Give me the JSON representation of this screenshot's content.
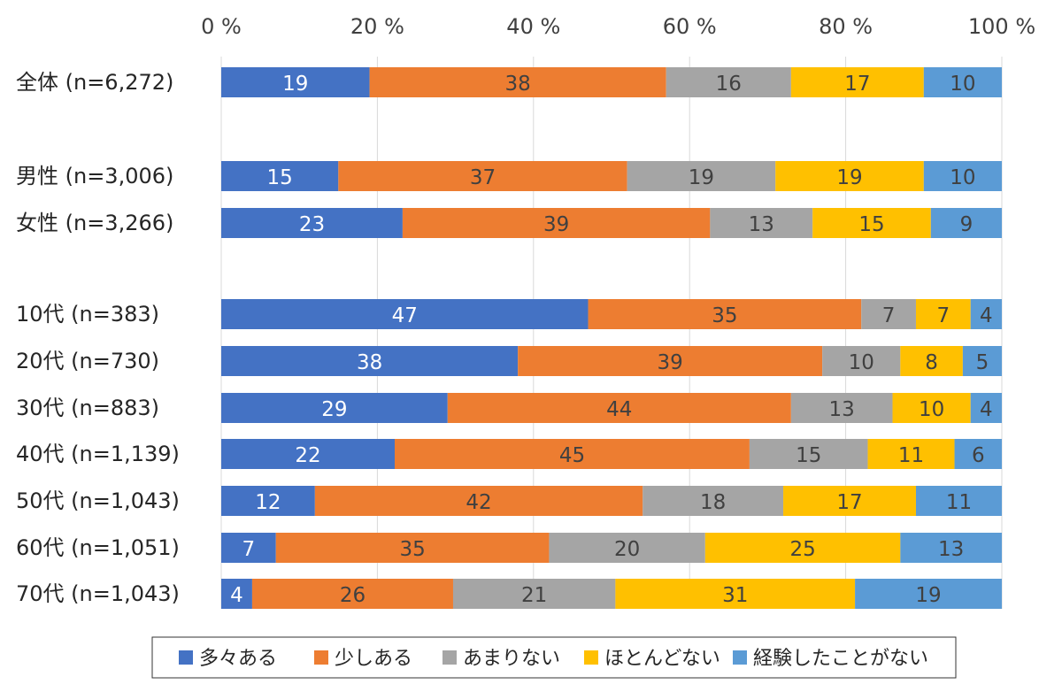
{
  "chart_data": {
    "type": "bar",
    "orientation": "horizontal-stacked-100",
    "x_ticks": [
      "0 %",
      "20 %",
      "40 %",
      "60 %",
      "80 %",
      "100 %"
    ],
    "xlim": [
      0,
      100
    ],
    "grid": true,
    "legend_position": "bottom",
    "categories": [
      "全体 (n=6,272)",
      "男性 (n=3,006)",
      "女性 (n=3,266)",
      "10代 (n=383)",
      "20代 (n=730)",
      "30代 (n=883)",
      "40代 (n=1,139)",
      "50代 (n=1,043)",
      "60代 (n=1,051)",
      "70代 (n=1,043)"
    ],
    "series": [
      {
        "name": "多々ある",
        "color": "#4472C4",
        "text_color": "#ffffff",
        "values": [
          19,
          15,
          23,
          47,
          38,
          29,
          22,
          12,
          7,
          4
        ]
      },
      {
        "name": "少しある",
        "color": "#ED7D31",
        "text_color": "#404040",
        "values": [
          38,
          37,
          39,
          35,
          39,
          44,
          45,
          42,
          35,
          26
        ]
      },
      {
        "name": "あまりない",
        "color": "#A5A5A5",
        "text_color": "#404040",
        "values": [
          16,
          19,
          13,
          7,
          10,
          13,
          15,
          18,
          20,
          21
        ]
      },
      {
        "name": "ほとんどない",
        "color": "#FFC000",
        "text_color": "#404040",
        "values": [
          17,
          19,
          15,
          7,
          8,
          10,
          11,
          17,
          25,
          31
        ]
      },
      {
        "name": "経験したことがない",
        "color": "#5B9BD5",
        "text_color": "#404040",
        "values": [
          10,
          10,
          9,
          4,
          5,
          4,
          6,
          11,
          13,
          19
        ]
      }
    ]
  }
}
